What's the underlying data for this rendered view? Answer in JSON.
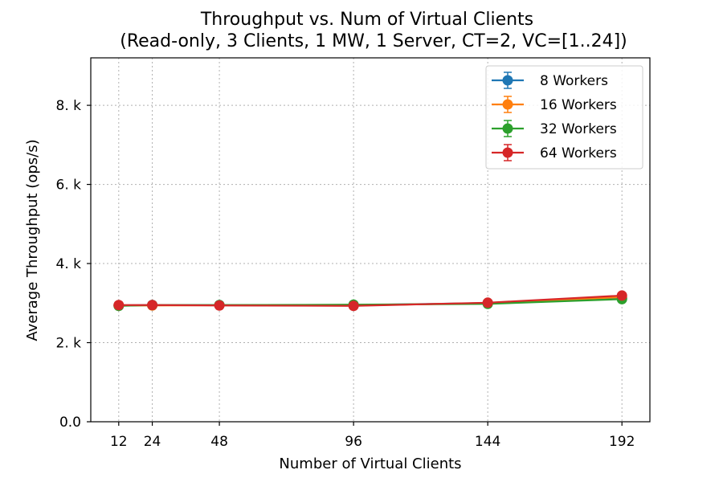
{
  "chart_data": {
    "type": "line",
    "title_line1": "Throughput vs. Num of Virtual Clients",
    "title_line2": "(Read-only, 3 Clients, 1 MW, 1 Server, CT=2, VC=[1..24])",
    "xlabel": "Number of Virtual Clients",
    "ylabel": "Average Throughput (ops/s)",
    "x": [
      12,
      24,
      48,
      96,
      144,
      192
    ],
    "xticks": [
      12,
      24,
      48,
      96,
      144,
      192
    ],
    "xlim": [
      2,
      202
    ],
    "ylim": [
      0,
      9200
    ],
    "yticks": [
      {
        "value": 0,
        "label": "0.0"
      },
      {
        "value": 2000,
        "label": "2. k"
      },
      {
        "value": 4000,
        "label": "4. k"
      },
      {
        "value": 6000,
        "label": "6. k"
      },
      {
        "value": 8000,
        "label": "8. k"
      }
    ],
    "grid": true,
    "legend_position": "top-right",
    "series": [
      {
        "name": "8 Workers",
        "color": "#1f77b4",
        "values": [
          2940,
          2950,
          2950,
          2950,
          3000,
          3120
        ],
        "errors": [
          30,
          30,
          30,
          30,
          40,
          60
        ]
      },
      {
        "name": "16 Workers",
        "color": "#ff7f0e",
        "values": [
          2940,
          2940,
          2945,
          2940,
          3000,
          3150
        ],
        "errors": [
          30,
          30,
          30,
          30,
          40,
          60
        ]
      },
      {
        "name": "32 Workers",
        "color": "#2ca02c",
        "values": [
          2930,
          2950,
          2950,
          2960,
          2980,
          3100
        ],
        "errors": [
          30,
          30,
          30,
          30,
          40,
          60
        ]
      },
      {
        "name": "64 Workers",
        "color": "#d62728",
        "values": [
          2950,
          2950,
          2940,
          2930,
          3010,
          3190
        ],
        "errors": [
          30,
          30,
          30,
          30,
          40,
          70
        ]
      }
    ]
  }
}
